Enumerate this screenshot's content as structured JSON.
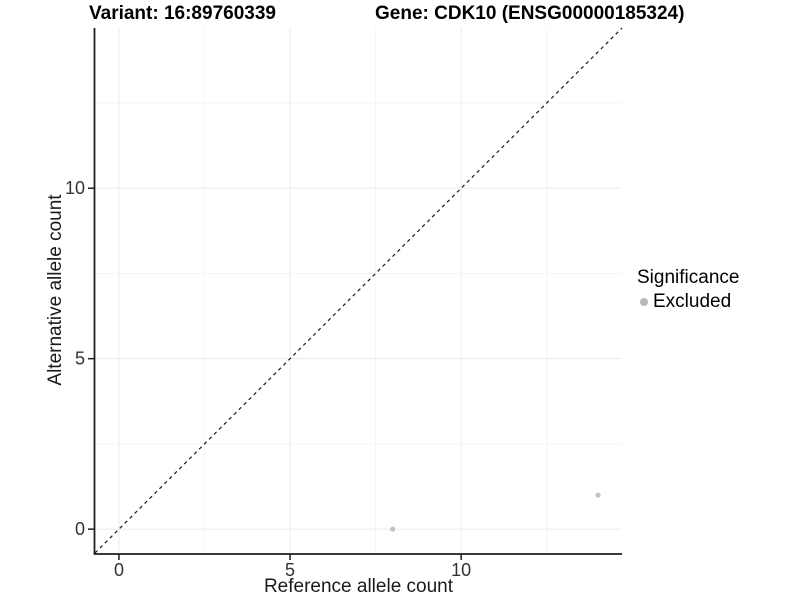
{
  "header": {
    "variant_title": "Variant: 16:89760339",
    "gene_title": "Gene: CDK10 (ENSG00000185324)"
  },
  "chart_data": {
    "type": "scatter",
    "title": "Variant: 16:89760339 / Gene: CDK10 (ENSG00000185324)",
    "xlabel": "Reference allele count",
    "ylabel": "Alternative allele count",
    "xlim": [
      -0.7,
      14.7
    ],
    "ylim": [
      -0.7,
      14.7
    ],
    "grid": true,
    "x_ticks": {
      "values": [
        0,
        5,
        10
      ],
      "labels": [
        "0",
        "5",
        "10"
      ]
    },
    "y_ticks": {
      "values": [
        0,
        5,
        10
      ],
      "labels": [
        "0",
        "5",
        "10"
      ]
    },
    "x_minor_ticks": [
      2.5,
      7.5,
      12.5
    ],
    "y_minor_ticks": [
      2.5,
      7.5,
      12.5
    ],
    "identity_line": {
      "style": "dashed",
      "from": -0.7,
      "to": 14.7
    },
    "series": [
      {
        "name": "Excluded",
        "color": "#c3c3c3",
        "points": [
          {
            "x": 8,
            "y": 0
          },
          {
            "x": 14,
            "y": 1
          }
        ]
      }
    ],
    "legend": {
      "title": "Significance",
      "position": "right",
      "items": [
        {
          "label": "Excluded",
          "color": "#b8b8b8"
        }
      ]
    },
    "colors": {
      "grid_major": "#ebebeb",
      "grid_minor": "#f5f5f5",
      "axis": "#1f1f1f",
      "tick_label": "#333333",
      "identity_line": "#1a1a1a"
    }
  }
}
